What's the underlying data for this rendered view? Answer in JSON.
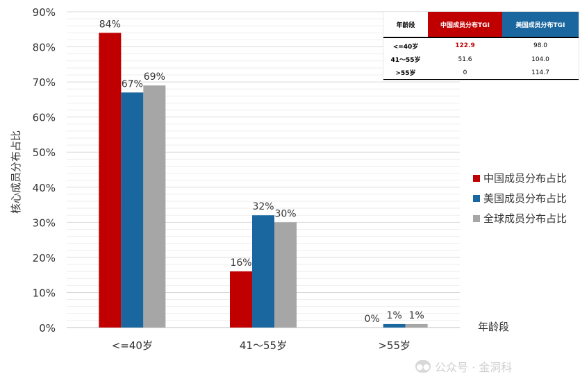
{
  "chart_data": {
    "type": "bar",
    "ylabel": "核心成员分布占比",
    "xlabel": "年龄段",
    "ylim": [
      0,
      90
    ],
    "y_ticks": [
      0,
      10,
      20,
      30,
      40,
      50,
      60,
      70,
      80,
      90
    ],
    "y_tick_labels": [
      "0%",
      "10%",
      "20%",
      "30%",
      "40%",
      "50%",
      "60%",
      "70%",
      "80%",
      "90%"
    ],
    "categories": [
      "<=40岁",
      "41～55岁",
      ">55岁"
    ],
    "series": [
      {
        "name": "中国成员分布占比",
        "values": [
          84,
          16,
          0
        ],
        "labels": [
          "84%",
          "16%",
          "0%"
        ],
        "color": "#c00000"
      },
      {
        "name": "美国成员分布占比",
        "values": [
          67,
          32,
          1
        ],
        "labels": [
          "67%",
          "32%",
          "1%"
        ],
        "color": "#1a67a0"
      },
      {
        "name": "全球成员分布占比",
        "values": [
          69,
          30,
          1
        ],
        "labels": [
          "69%",
          "30%",
          "1%"
        ],
        "color": "#a6a6a6"
      }
    ],
    "legend_position": "right",
    "grid": true
  },
  "tgi_table": {
    "headers": [
      "年龄段",
      "中国成员分布TGI",
      "美国成员分布TGI"
    ],
    "header_colors": [
      "#ffffff",
      "#c00000",
      "#1a67a0"
    ],
    "rows": [
      {
        "label": "<=40岁",
        "cn": "122.9",
        "us": "98.0",
        "cn_highlight": true
      },
      {
        "label": "41～55岁",
        "cn": "51.6",
        "us": "104.0",
        "cn_highlight": false
      },
      {
        "label": ">55岁",
        "cn": "0",
        "us": "114.7",
        "cn_highlight": false
      }
    ]
  },
  "watermark": {
    "text": "公众号 · 金洞科",
    "icon": "wechat-icon"
  }
}
